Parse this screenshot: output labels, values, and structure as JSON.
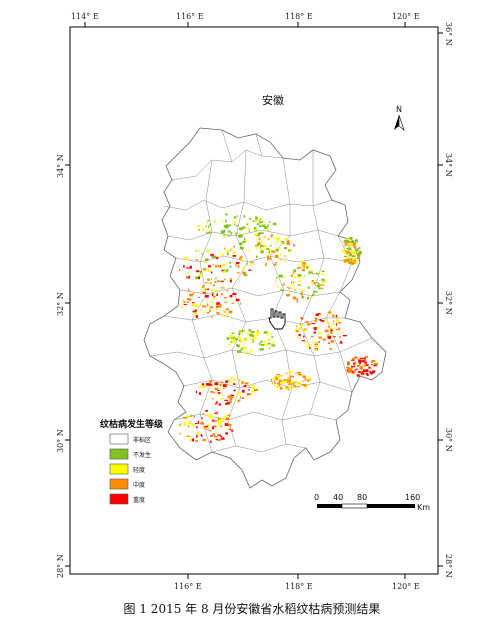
{
  "map": {
    "region_label": "安徽",
    "north_label": "N",
    "lon_ticks": [
      "114° E",
      "116° E",
      "118° E",
      "120° E"
    ],
    "lat_ticks_left": [
      "34° N",
      "32° N",
      "30° N",
      "28° N"
    ],
    "lat_ticks_right": [
      "36° N",
      "34° N",
      "32° N",
      "30° N",
      "28° N"
    ]
  },
  "legend": {
    "title": "纹枯病发生等级",
    "items": [
      {
        "label": "非稻区",
        "color": "#ffffff"
      },
      {
        "label": "不发生",
        "color": "#7fc31c"
      },
      {
        "label": "轻度",
        "color": "#ffff00"
      },
      {
        "label": "中度",
        "color": "#ff8c00"
      },
      {
        "label": "重度",
        "color": "#ff0000"
      }
    ]
  },
  "scale_bar": {
    "ticks": [
      "0",
      "40",
      "80",
      "160"
    ],
    "unit": "Km"
  },
  "caption": "图 1 2015 年 8 月份安徽省水稻纹枯病预测结果",
  "colors": {
    "frame": "#000000",
    "boundary": "#777777",
    "none": "#7fc31c",
    "light": "#ffff00",
    "moderate": "#ff8c00",
    "severe": "#ff0000"
  }
}
